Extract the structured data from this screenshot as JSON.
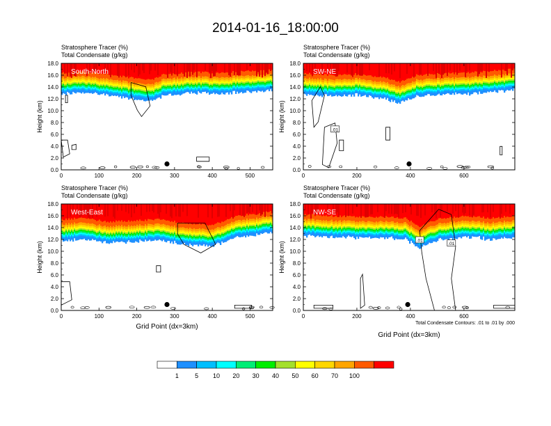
{
  "title": "2014-01-16_18:00:00",
  "colors": {
    "scale": [
      "#ffffff",
      "#1e90ff",
      "#00bfff",
      "#00ffff",
      "#00ee76",
      "#00ee00",
      "#a4e02c",
      "#ffff00",
      "#ffd700",
      "#ffa500",
      "#ff5a00",
      "#ff0000"
    ],
    "contour": "#000000"
  },
  "chart_data": [
    {
      "type": "heatmap",
      "panel_label": "South-North",
      "field_labels": [
        "Stratosphere Tracer   (%)",
        "Total Condensate   (g/kg)"
      ],
      "ylabel": "Height (km)",
      "xlabel": "",
      "ylim": [
        0,
        18
      ],
      "xlim": [
        0,
        560
      ],
      "yticks": [
        "0.0",
        "2.0",
        "4.0",
        "6.0",
        "8.0",
        "10.0",
        "12.0",
        "14.0",
        "16.0",
        "18.0"
      ],
      "xticks": [
        0,
        100,
        200,
        300,
        400,
        500
      ],
      "contour_labels": [],
      "profile": {
        "x": [
          0,
          60,
          160,
          200,
          240,
          270,
          340,
          420,
          480,
          560
        ],
        "tropopause_km": [
          14.6,
          14.8,
          14.0,
          13.6,
          13.4,
          14.3,
          14.7,
          14.6,
          14.9,
          15.2
        ]
      },
      "marker": {
        "x": 280,
        "y": 1.0
      }
    },
    {
      "type": "heatmap",
      "panel_label": "SW-NE",
      "field_labels": [
        "Stratosphere Tracer   (%)",
        "Total Condensate   (g/kg)"
      ],
      "ylabel": "Height (km)",
      "xlabel": "",
      "ylim": [
        0,
        18
      ],
      "xlim": [
        0,
        790
      ],
      "yticks": [
        "0.0",
        "2.0",
        "4.0",
        "6.0",
        "8.0",
        "10.0",
        "12.0",
        "14.0",
        "16.0",
        "18.0"
      ],
      "xticks": [
        0,
        200,
        400,
        600
      ],
      "contour_labels": [
        ".01"
      ],
      "profile": {
        "x": [
          0,
          100,
          200,
          300,
          360,
          420,
          500,
          600,
          700,
          790
        ],
        "tropopause_km": [
          14.6,
          14.2,
          14.4,
          13.8,
          13.0,
          14.2,
          14.4,
          14.6,
          14.9,
          15.3
        ]
      },
      "marker": {
        "x": 395,
        "y": 1.0
      }
    },
    {
      "type": "heatmap",
      "panel_label": "West-East",
      "field_labels": [
        "Stratosphere Tracer   (%)",
        "Total Condensate   (g/kg)"
      ],
      "ylabel": "Height (km)",
      "xlabel": "Grid Point (dx=3km)",
      "ylim": [
        0,
        18
      ],
      "xlim": [
        0,
        560
      ],
      "yticks": [
        "0.0",
        "2.0",
        "4.0",
        "6.0",
        "8.0",
        "10.0",
        "12.0",
        "14.0",
        "16.0",
        "18.0"
      ],
      "xticks": [
        0,
        100,
        200,
        300,
        400,
        500
      ],
      "contour_labels": [],
      "profile": {
        "x": [
          0,
          60,
          120,
          200,
          260,
          320,
          400,
          460,
          520,
          560
        ],
        "tropopause_km": [
          13.6,
          13.8,
          13.2,
          13.4,
          13.6,
          13.0,
          12.6,
          14.2,
          14.6,
          14.9
        ]
      },
      "marker": {
        "x": 280,
        "y": 1.0
      }
    },
    {
      "type": "heatmap",
      "panel_label": "NW-SE",
      "field_labels": [
        "Stratosphere Tracer   (%)",
        "Total Condensate   (g/kg)"
      ],
      "ylabel": "Height (km)",
      "xlabel": "Grid Point (dx=3km)",
      "ylim": [
        0,
        18
      ],
      "xlim": [
        0,
        790
      ],
      "yticks": [
        "0.0",
        "2.0",
        "4.0",
        "6.0",
        "8.0",
        "10.0",
        "12.0",
        "14.0",
        "16.0",
        "18.0"
      ],
      "xticks": [
        0,
        200,
        400,
        600
      ],
      "contour_labels": [
        ".01",
        ".01"
      ],
      "profile": {
        "x": [
          0,
          100,
          200,
          300,
          380,
          430,
          500,
          600,
          700,
          790
        ],
        "tropopause_km": [
          14.4,
          14.2,
          14.0,
          14.0,
          13.8,
          12.4,
          13.6,
          14.2,
          13.8,
          14.2
        ]
      },
      "marker": {
        "x": 390,
        "y": 1.0
      },
      "note": "Total Condensate Contours: .01 to .01 by .000"
    }
  ],
  "colorbar": {
    "labels": [
      "1",
      "5",
      "10",
      "20",
      "30",
      "40",
      "50",
      "60",
      "70",
      "100"
    ]
  }
}
